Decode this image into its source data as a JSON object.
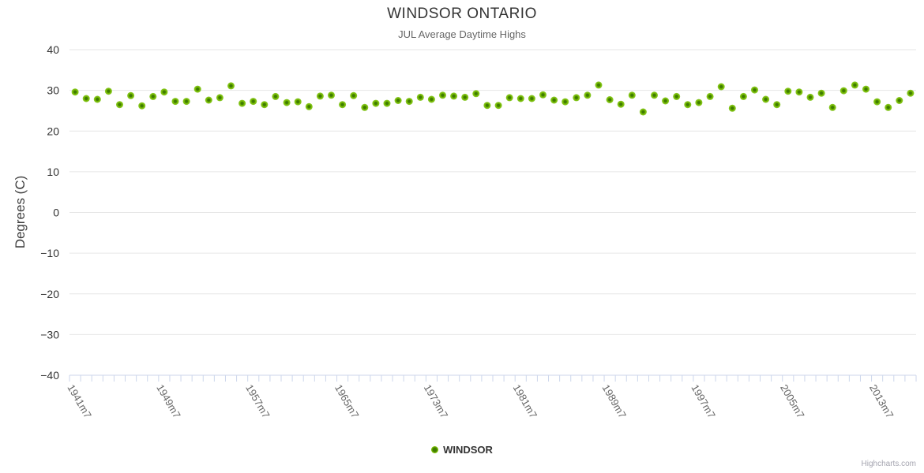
{
  "chart": {
    "title": "WINDSOR ONTARIO",
    "subtitle": "JUL Average Daytime Highs",
    "credits": "Highcharts.com"
  },
  "legend": {
    "series_label": "WINDSOR"
  },
  "chart_data": {
    "type": "scatter",
    "title": "WINDSOR ONTARIO",
    "subtitle": "JUL Average Daytime Highs",
    "xlabel": "",
    "ylabel": "Degrees (C)",
    "ylim": [
      -40,
      40
    ],
    "ytick_interval": 10,
    "grid": true,
    "legend_position": "bottom-center",
    "point_color": "#76b900",
    "point_core_color": "#3e7c00",
    "point_edge_color": "#8ac92e",
    "grid_color": "#e6e6e6",
    "axis_color": "#ccd6eb",
    "x_tick_labels_shown": [
      "1941m7",
      "1949m7",
      "1957m7",
      "1965m7",
      "1973m7",
      "1981m7",
      "1989m7",
      "1997m7",
      "2005m7",
      "2013m7"
    ],
    "categories": [
      "1941m7",
      "1942m7",
      "1943m7",
      "1944m7",
      "1945m7",
      "1946m7",
      "1947m7",
      "1948m7",
      "1949m7",
      "1950m7",
      "1951m7",
      "1952m7",
      "1953m7",
      "1954m7",
      "1955m7",
      "1956m7",
      "1957m7",
      "1958m7",
      "1959m7",
      "1960m7",
      "1961m7",
      "1962m7",
      "1963m7",
      "1964m7",
      "1965m7",
      "1966m7",
      "1967m7",
      "1968m7",
      "1969m7",
      "1970m7",
      "1971m7",
      "1972m7",
      "1973m7",
      "1974m7",
      "1975m7",
      "1976m7",
      "1977m7",
      "1978m7",
      "1979m7",
      "1980m7",
      "1981m7",
      "1982m7",
      "1983m7",
      "1984m7",
      "1985m7",
      "1986m7",
      "1987m7",
      "1988m7",
      "1989m7",
      "1990m7",
      "1991m7",
      "1992m7",
      "1993m7",
      "1994m7",
      "1995m7",
      "1996m7",
      "1997m7",
      "1998m7",
      "1999m7",
      "2000m7",
      "2001m7",
      "2002m7",
      "2003m7",
      "2004m7",
      "2005m7",
      "2006m7",
      "2007m7",
      "2008m7",
      "2009m7",
      "2010m7",
      "2011m7",
      "2012m7",
      "2013m7",
      "2014m7",
      "2015m7",
      "2016m7"
    ],
    "series": [
      {
        "name": "WINDSOR",
        "values": [
          29.6,
          28.0,
          27.8,
          29.8,
          26.5,
          28.7,
          26.2,
          28.5,
          29.6,
          27.3,
          27.3,
          30.3,
          27.6,
          28.2,
          31.1,
          26.8,
          27.3,
          26.5,
          28.5,
          27.0,
          27.2,
          26.0,
          28.6,
          28.8,
          26.5,
          28.7,
          25.8,
          26.8,
          26.8,
          27.5,
          27.3,
          28.3,
          27.8,
          28.8,
          28.6,
          28.3,
          29.2,
          26.3,
          26.3,
          28.2,
          28.0,
          28.0,
          28.9,
          27.6,
          27.2,
          28.2,
          28.8,
          31.3,
          27.7,
          26.6,
          28.8,
          24.7,
          28.8,
          27.4,
          28.5,
          26.5,
          27.0,
          28.5,
          30.9,
          25.6,
          28.5,
          30.1,
          27.8,
          26.5,
          29.8,
          29.6,
          28.3,
          29.3,
          25.8,
          29.9,
          31.3,
          30.3,
          27.2,
          25.8,
          27.5,
          29.3
        ]
      }
    ]
  }
}
